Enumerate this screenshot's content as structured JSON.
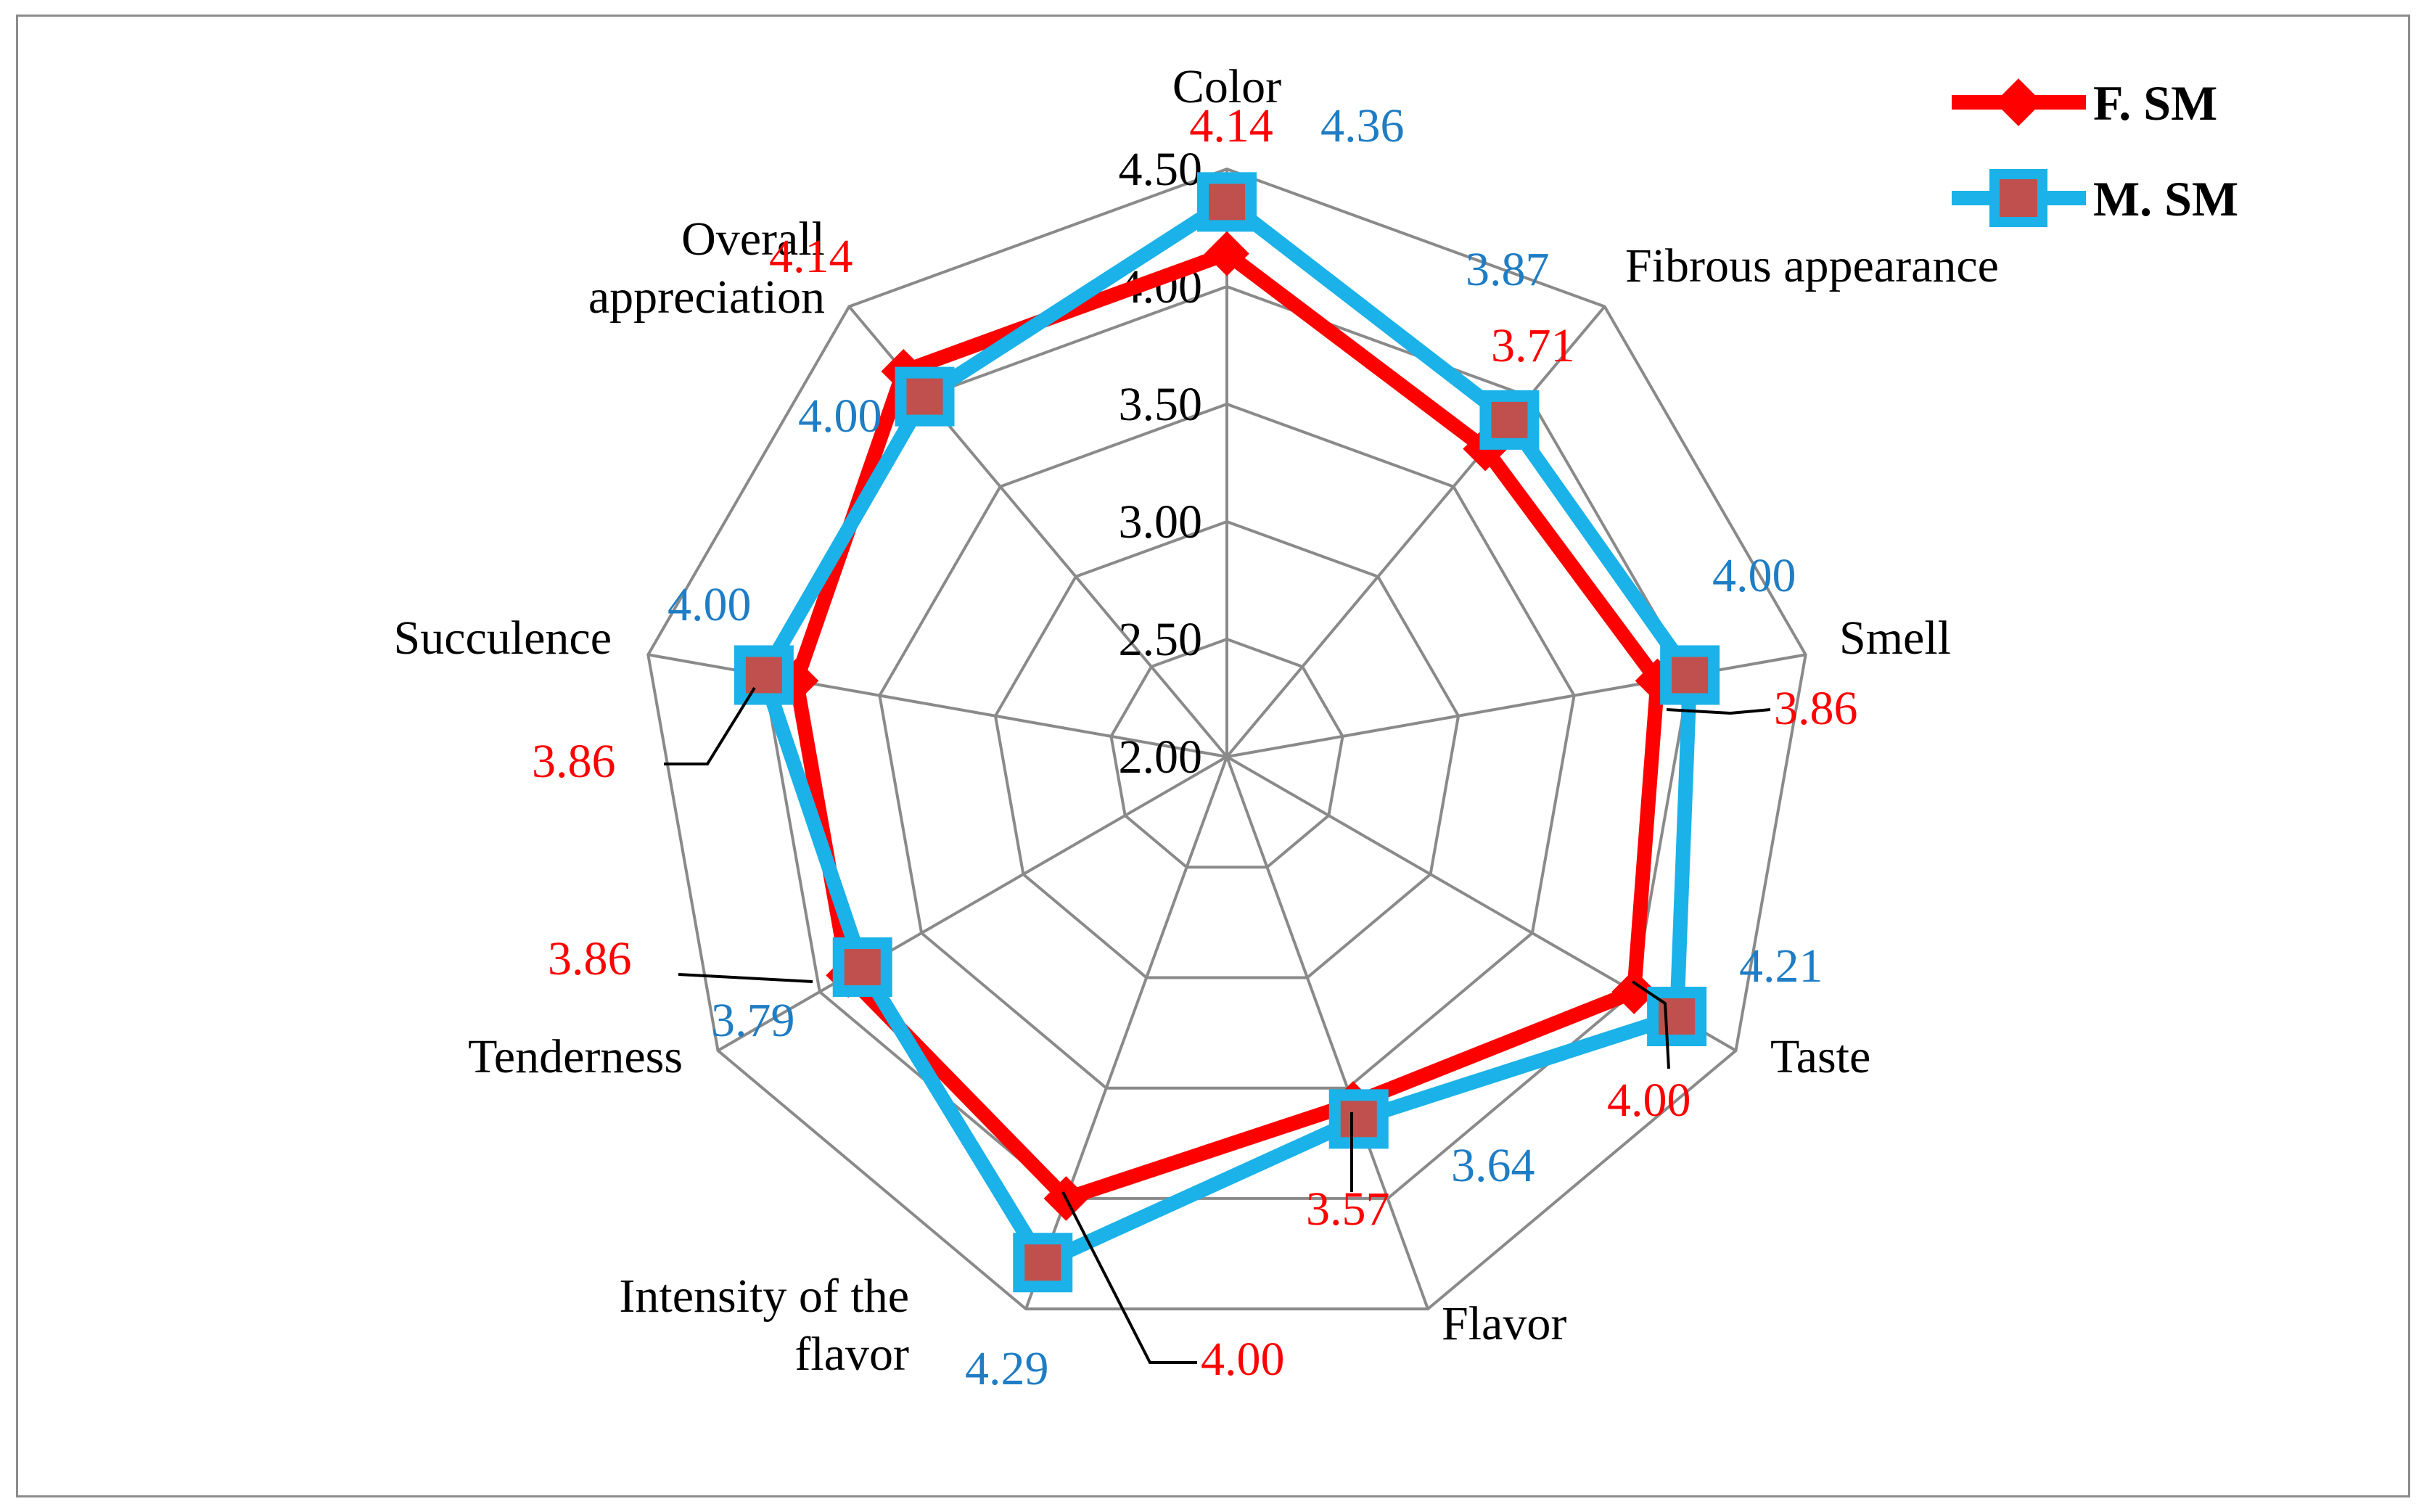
{
  "chart_data": {
    "type": "radar",
    "title": "",
    "categories": [
      "Color",
      "Fibrous appearance",
      "Smell",
      "Taste",
      "Flavor",
      "Intensity of the flavor",
      "Tenderness",
      "Succulence",
      "Overall appreciation"
    ],
    "category_lines": [
      [
        "Color"
      ],
      [
        "Fibrous appearance"
      ],
      [
        "Smell"
      ],
      [
        "Taste"
      ],
      [
        "Flavor"
      ],
      [
        "Intensity of the",
        "flavor"
      ],
      [
        "Tenderness"
      ],
      [
        "Succulence"
      ],
      [
        "Overall",
        "appreciation"
      ]
    ],
    "rlim": [
      2.0,
      4.5
    ],
    "ticks": [
      2.0,
      2.5,
      3.0,
      3.5,
      4.0,
      4.5
    ],
    "tick_labels": [
      "2.00",
      "2.50",
      "3.00",
      "3.50",
      "4.00",
      "4.50"
    ],
    "grid": true,
    "legend_position": "top-right",
    "series": [
      {
        "name": "F. SM",
        "color": "#ff0000",
        "marker": "diamond",
        "values": [
          4.14,
          3.71,
          3.86,
          4.0,
          3.57,
          4.0,
          3.86,
          3.86,
          4.14
        ],
        "value_labels": [
          "4.14",
          "3.71",
          "3.86",
          "4.00",
          "3.57",
          "4.00",
          "3.86",
          "3.86",
          "4.14"
        ]
      },
      {
        "name": "M. SM",
        "color": "#1ab2e8",
        "marker": "square",
        "values": [
          4.36,
          3.87,
          4.0,
          4.21,
          3.64,
          4.29,
          3.79,
          4.0,
          4.0
        ],
        "value_labels": [
          "4.36",
          "3.87",
          "4.00",
          "4.21",
          "3.64",
          "4.29",
          "3.79",
          "4.00",
          "4.00"
        ]
      }
    ]
  }
}
